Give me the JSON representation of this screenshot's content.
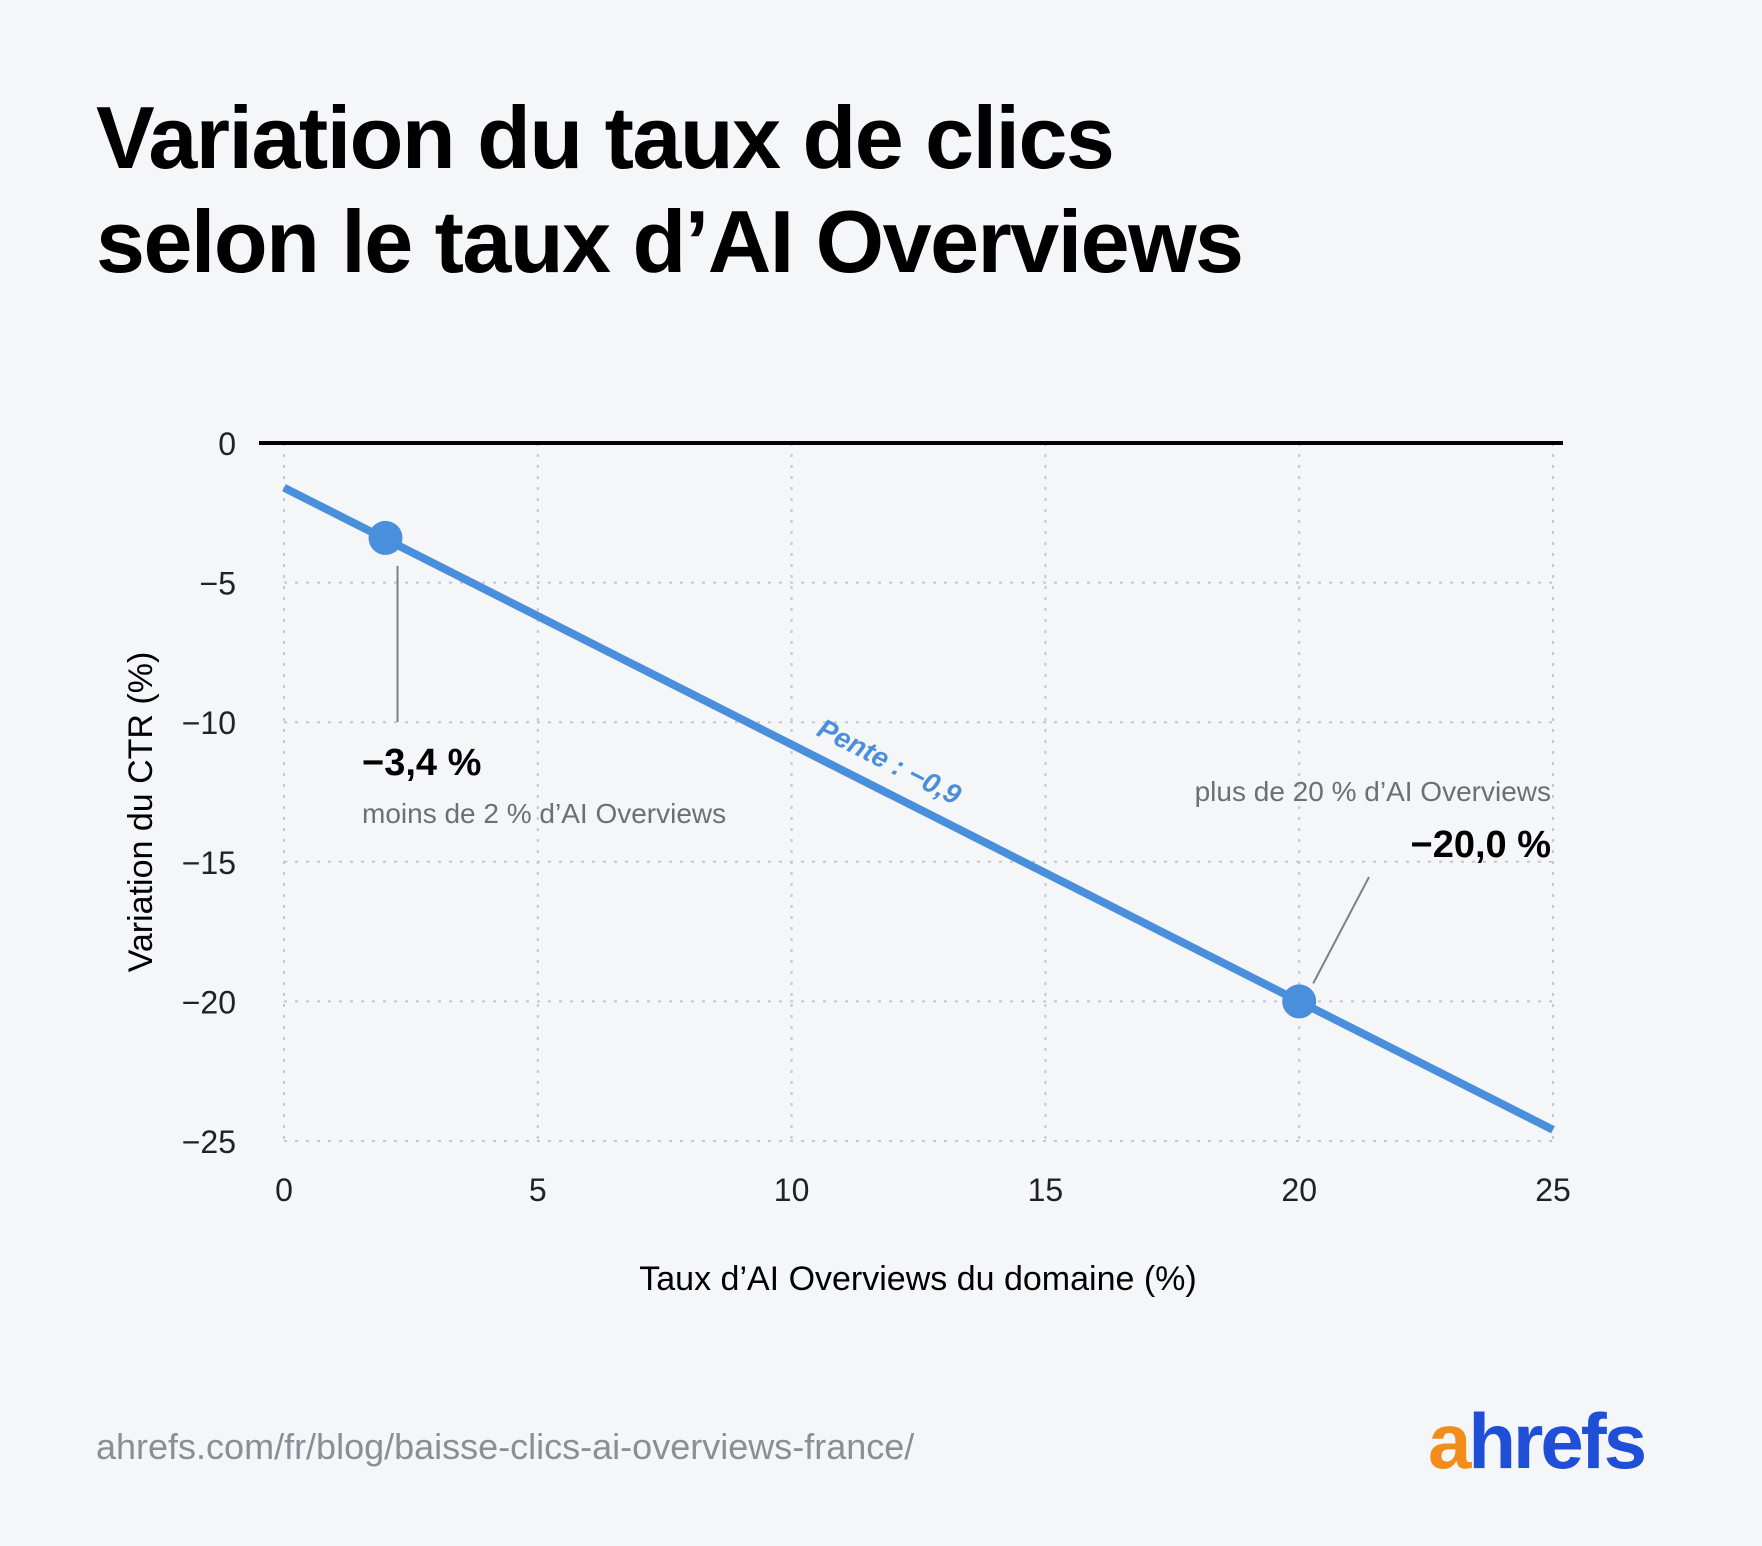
{
  "title_line1": "Variation du taux de clics",
  "title_line2": "selon le taux d’AI Overviews",
  "footer_url": "ahrefs.com/fr/blog/baisse-clics-ai-overviews-france/",
  "logo": {
    "a": "a",
    "rest": "hrefs",
    "color_a": "#f28c1a",
    "color_rest": "#1f4fd6"
  },
  "chart_data": {
    "type": "line",
    "xlabel": "Taux d’AI Overviews du domaine (%)",
    "ylabel": "Variation du CTR (%)",
    "xlim": [
      0,
      25
    ],
    "ylim": [
      -25,
      0
    ],
    "x_ticks": [
      0,
      5,
      10,
      15,
      20,
      25
    ],
    "y_ticks": [
      0,
      -5,
      -10,
      -15,
      -20,
      -25
    ],
    "x_tick_labels": [
      "0",
      "5",
      "10",
      "15",
      "20",
      "25"
    ],
    "y_tick_labels": [
      "0",
      "−5",
      "−10",
      "−15",
      "−20",
      "−25"
    ],
    "grid": true,
    "line_color": "#4a8fdb",
    "series": [
      {
        "x": [
          0,
          25
        ],
        "y": [
          -1.6,
          -24.6
        ]
      }
    ],
    "highlight_points": [
      {
        "x": 2,
        "y": -3.4
      },
      {
        "x": 20,
        "y": -20.0
      }
    ],
    "annotations": {
      "slope_label": "Pente : −0,9",
      "point1_value": "−3,4 %",
      "point1_desc": "moins de 2 % d’AI Overviews",
      "point2_value": "−20,0 %",
      "point2_desc": "plus de 20 % d’AI Overviews"
    }
  }
}
